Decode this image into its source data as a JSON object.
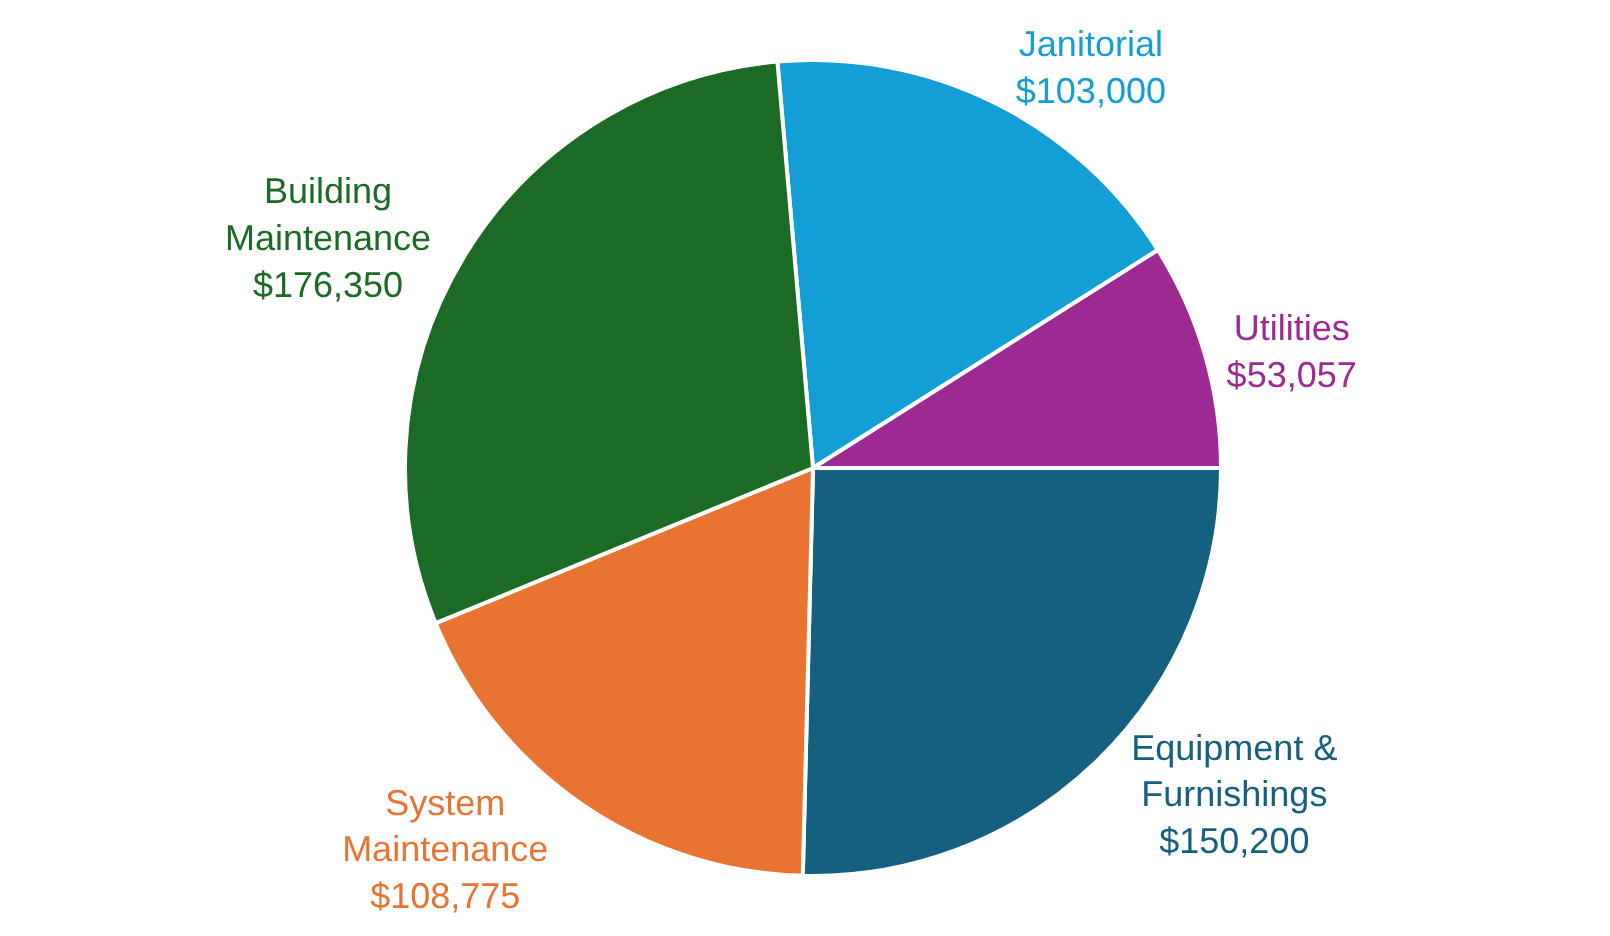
{
  "chart_data": {
    "type": "pie",
    "categories": [
      "Janitorial",
      "Utilities",
      "Equipment & Furnishings",
      "System Maintenance",
      "Building Maintenance"
    ],
    "values": [
      103000,
      53057,
      150200,
      108775,
      176350
    ],
    "value_labels": [
      "$103,000",
      "$53,057",
      "$150,200",
      "$108,775",
      "$176,350"
    ],
    "colors": [
      "#139fd6",
      "#9c2a92",
      "#155f80",
      "#e97432",
      "#1b6b26"
    ],
    "legend": false
  }
}
